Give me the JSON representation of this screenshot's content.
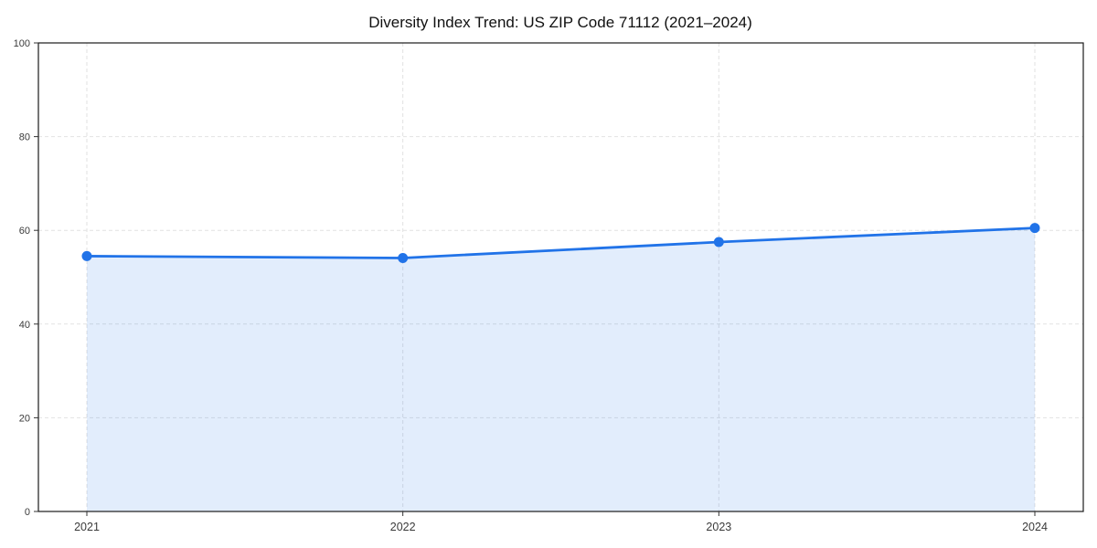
{
  "chart_data": {
    "type": "area",
    "title": "Diversity Index Trend: US ZIP Code 71112 (2021–2024)",
    "categories": [
      "2021",
      "2022",
      "2023",
      "2024"
    ],
    "values": [
      54.5,
      54.1,
      57.5,
      60.5
    ],
    "xlabel": "",
    "ylabel": "",
    "ylim": [
      0,
      100
    ],
    "yticks": [
      0,
      20,
      40,
      60,
      80,
      100
    ],
    "grid": true,
    "legend_visible": false,
    "colors": {
      "line": "#2173e8",
      "marker": "#2173e8",
      "fill": "rgba(33, 115, 232, 0.13)",
      "grid": "#e2e2e2",
      "spine": "#1a1a1a",
      "tick": "#333333",
      "title": "#111111",
      "tick_label": "#3a3a3a",
      "background": "#ffffff"
    }
  }
}
